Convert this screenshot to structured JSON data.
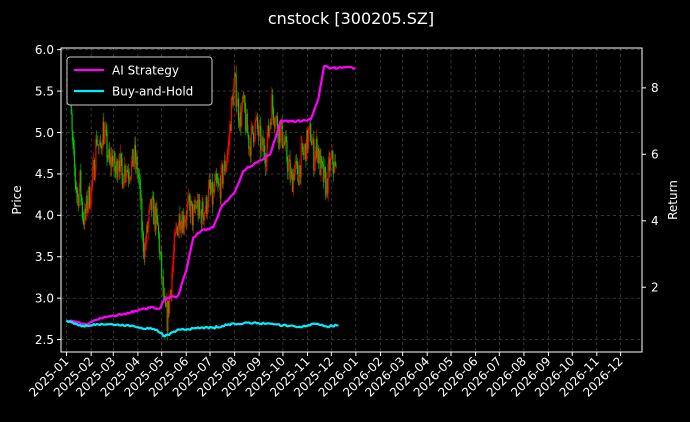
{
  "chart_data": {
    "type": "line",
    "title": "cnstock [300205.SZ]",
    "ylabel_left": "Price",
    "ylabel_right": "Return",
    "xlim": [
      "2024-12-25",
      "2026-12-28"
    ],
    "ylim_left": [
      2.35,
      6.02
    ],
    "ylim_right": [
      0.05,
      9.2
    ],
    "x_ticks": [
      "2025-01",
      "2025-02",
      "2025-03",
      "2025-04",
      "2025-05",
      "2025-06",
      "2025-07",
      "2025-08",
      "2025-09",
      "2025-10",
      "2025-11",
      "2025-12",
      "2026-01",
      "2026-02",
      "2026-03",
      "2026-04",
      "2026-05",
      "2026-06",
      "2026-07",
      "2026-08",
      "2026-09",
      "2026-10",
      "2026-11",
      "2026-12"
    ],
    "y_ticks_left": [
      "2.5",
      "3.0",
      "3.5",
      "4.0",
      "4.5",
      "5.0",
      "5.5",
      "6.0"
    ],
    "y_ticks_right": [
      "2",
      "4",
      "6",
      "8"
    ],
    "grid": true,
    "legend": {
      "placement": "top-left",
      "entries": [
        {
          "label": "AI Strategy",
          "color": "#ff00ff"
        },
        {
          "label": "Buy-and-Hold",
          "color": "#00eeff"
        }
      ]
    },
    "candle_colors": {
      "up": "#ff0000",
      "down": "#00cc00"
    },
    "price_series": [
      {
        "date": "2025-01-02",
        "value": 5.75
      },
      {
        "date": "2025-01-04",
        "value": 5.55
      },
      {
        "date": "2025-01-07",
        "value": 5.15
      },
      {
        "date": "2025-01-09",
        "value": 4.75
      },
      {
        "date": "2025-01-12",
        "value": 4.45
      },
      {
        "date": "2025-01-15",
        "value": 4.2
      },
      {
        "date": "2025-01-18",
        "value": 4.4
      },
      {
        "date": "2025-01-21",
        "value": 4.05
      },
      {
        "date": "2025-01-24",
        "value": 3.95
      },
      {
        "date": "2025-01-27",
        "value": 4.15
      },
      {
        "date": "2025-02-01",
        "value": 4.3
      },
      {
        "date": "2025-02-05",
        "value": 4.6
      },
      {
        "date": "2025-02-08",
        "value": 4.95
      },
      {
        "date": "2025-02-12",
        "value": 4.75
      },
      {
        "date": "2025-02-16",
        "value": 5.05
      },
      {
        "date": "2025-02-20",
        "value": 4.85
      },
      {
        "date": "2025-02-24",
        "value": 4.6
      },
      {
        "date": "2025-02-28",
        "value": 4.7
      },
      {
        "date": "2025-03-04",
        "value": 4.5
      },
      {
        "date": "2025-03-08",
        "value": 4.75
      },
      {
        "date": "2025-03-12",
        "value": 4.45
      },
      {
        "date": "2025-03-16",
        "value": 4.6
      },
      {
        "date": "2025-03-20",
        "value": 4.55
      },
      {
        "date": "2025-03-24",
        "value": 4.6
      },
      {
        "date": "2025-03-28",
        "value": 4.7
      },
      {
        "date": "2025-04-01",
        "value": 4.5
      },
      {
        "date": "2025-04-04",
        "value": 4.2
      },
      {
        "date": "2025-04-07",
        "value": 3.7
      },
      {
        "date": "2025-04-10",
        "value": 3.6
      },
      {
        "date": "2025-04-14",
        "value": 3.9
      },
      {
        "date": "2025-04-18",
        "value": 4.1
      },
      {
        "date": "2025-04-22",
        "value": 4.0
      },
      {
        "date": "2025-04-26",
        "value": 3.85
      },
      {
        "date": "2025-04-30",
        "value": 3.4
      },
      {
        "date": "2025-05-04",
        "value": 2.9
      },
      {
        "date": "2025-05-08",
        "value": 2.75
      },
      {
        "date": "2025-05-12",
        "value": 3.1
      },
      {
        "date": "2025-05-16",
        "value": 3.5
      },
      {
        "date": "2025-05-20",
        "value": 3.85
      },
      {
        "date": "2025-05-24",
        "value": 4.0
      },
      {
        "date": "2025-05-28",
        "value": 3.95
      },
      {
        "date": "2025-06-02",
        "value": 4.05
      },
      {
        "date": "2025-06-06",
        "value": 4.1
      },
      {
        "date": "2025-06-10",
        "value": 3.95
      },
      {
        "date": "2025-06-14",
        "value": 4.15
      },
      {
        "date": "2025-06-18",
        "value": 4.0
      },
      {
        "date": "2025-06-22",
        "value": 4.05
      },
      {
        "date": "2025-06-26",
        "value": 4.1
      },
      {
        "date": "2025-06-30",
        "value": 4.3
      },
      {
        "date": "2025-07-04",
        "value": 4.2
      },
      {
        "date": "2025-07-08",
        "value": 4.35
      },
      {
        "date": "2025-07-12",
        "value": 4.3
      },
      {
        "date": "2025-07-16",
        "value": 4.45
      },
      {
        "date": "2025-07-20",
        "value": 4.6
      },
      {
        "date": "2025-07-24",
        "value": 4.8
      },
      {
        "date": "2025-07-28",
        "value": 5.3
      },
      {
        "date": "2025-08-01",
        "value": 5.6
      },
      {
        "date": "2025-08-04",
        "value": 5.4
      },
      {
        "date": "2025-08-08",
        "value": 5.15
      },
      {
        "date": "2025-08-12",
        "value": 5.35
      },
      {
        "date": "2025-08-16",
        "value": 5.05
      },
      {
        "date": "2025-08-20",
        "value": 4.85
      },
      {
        "date": "2025-08-24",
        "value": 5.0
      },
      {
        "date": "2025-08-28",
        "value": 5.1
      },
      {
        "date": "2025-09-01",
        "value": 4.95
      },
      {
        "date": "2025-09-05",
        "value": 4.8
      },
      {
        "date": "2025-09-09",
        "value": 4.75
      },
      {
        "date": "2025-09-13",
        "value": 5.0
      },
      {
        "date": "2025-09-17",
        "value": 5.35
      },
      {
        "date": "2025-09-21",
        "value": 5.2
      },
      {
        "date": "2025-09-25",
        "value": 5.05
      },
      {
        "date": "2025-09-29",
        "value": 5.0
      },
      {
        "date": "2025-10-03",
        "value": 4.85
      },
      {
        "date": "2025-10-08",
        "value": 4.6
      },
      {
        "date": "2025-10-12",
        "value": 4.4
      },
      {
        "date": "2025-10-16",
        "value": 4.6
      },
      {
        "date": "2025-10-20",
        "value": 4.45
      },
      {
        "date": "2025-10-24",
        "value": 4.7
      },
      {
        "date": "2025-10-28",
        "value": 4.75
      },
      {
        "date": "2025-11-01",
        "value": 4.9
      },
      {
        "date": "2025-11-05",
        "value": 5.0
      },
      {
        "date": "2025-11-09",
        "value": 4.7
      },
      {
        "date": "2025-11-13",
        "value": 4.85
      },
      {
        "date": "2025-11-17",
        "value": 4.6
      },
      {
        "date": "2025-11-21",
        "value": 4.45
      },
      {
        "date": "2025-11-25",
        "value": 4.35
      },
      {
        "date": "2025-11-29",
        "value": 4.6
      },
      {
        "date": "2025-12-03",
        "value": 4.65
      },
      {
        "date": "2025-12-07",
        "value": 4.5
      }
    ],
    "series": [
      {
        "name": "AI Strategy",
        "color": "#ff00ff",
        "points": [
          {
            "date": "2025-01-01",
            "value": 1.0
          },
          {
            "date": "2025-01-15",
            "value": 0.95
          },
          {
            "date": "2025-01-25",
            "value": 0.88
          },
          {
            "date": "2025-02-08",
            "value": 1.02
          },
          {
            "date": "2025-02-20",
            "value": 1.1
          },
          {
            "date": "2025-03-15",
            "value": 1.2
          },
          {
            "date": "2025-04-01",
            "value": 1.3
          },
          {
            "date": "2025-04-20",
            "value": 1.4
          },
          {
            "date": "2025-04-28",
            "value": 1.35
          },
          {
            "date": "2025-05-05",
            "value": 1.65
          },
          {
            "date": "2025-05-22",
            "value": 1.75
          },
          {
            "date": "2025-06-01",
            "value": 2.5
          },
          {
            "date": "2025-06-10",
            "value": 3.5
          },
          {
            "date": "2025-06-20",
            "value": 3.7
          },
          {
            "date": "2025-07-05",
            "value": 3.8
          },
          {
            "date": "2025-07-15",
            "value": 4.4
          },
          {
            "date": "2025-08-01",
            "value": 4.85
          },
          {
            "date": "2025-08-12",
            "value": 5.5
          },
          {
            "date": "2025-08-28",
            "value": 5.75
          },
          {
            "date": "2025-09-15",
            "value": 6.0
          },
          {
            "date": "2025-09-28",
            "value": 7.0
          },
          {
            "date": "2025-10-25",
            "value": 7.0
          },
          {
            "date": "2025-11-05",
            "value": 7.05
          },
          {
            "date": "2025-11-15",
            "value": 7.7
          },
          {
            "date": "2025-11-22",
            "value": 8.65
          },
          {
            "date": "2025-12-01",
            "value": 8.6
          },
          {
            "date": "2025-12-31",
            "value": 8.6
          }
        ]
      },
      {
        "name": "Buy-and-Hold",
        "color": "#00eeff",
        "points": [
          {
            "date": "2025-01-01",
            "value": 1.0
          },
          {
            "date": "2025-01-20",
            "value": 0.82
          },
          {
            "date": "2025-02-10",
            "value": 0.88
          },
          {
            "date": "2025-03-01",
            "value": 0.87
          },
          {
            "date": "2025-03-20",
            "value": 0.86
          },
          {
            "date": "2025-04-05",
            "value": 0.78
          },
          {
            "date": "2025-04-25",
            "value": 0.72
          },
          {
            "date": "2025-05-05",
            "value": 0.52
          },
          {
            "date": "2025-05-20",
            "value": 0.7
          },
          {
            "date": "2025-06-10",
            "value": 0.76
          },
          {
            "date": "2025-07-05",
            "value": 0.78
          },
          {
            "date": "2025-08-01",
            "value": 0.9
          },
          {
            "date": "2025-08-25",
            "value": 0.93
          },
          {
            "date": "2025-09-20",
            "value": 0.88
          },
          {
            "date": "2025-10-20",
            "value": 0.8
          },
          {
            "date": "2025-11-10",
            "value": 0.9
          },
          {
            "date": "2025-11-25",
            "value": 0.82
          },
          {
            "date": "2025-12-10",
            "value": 0.85
          }
        ]
      }
    ]
  }
}
